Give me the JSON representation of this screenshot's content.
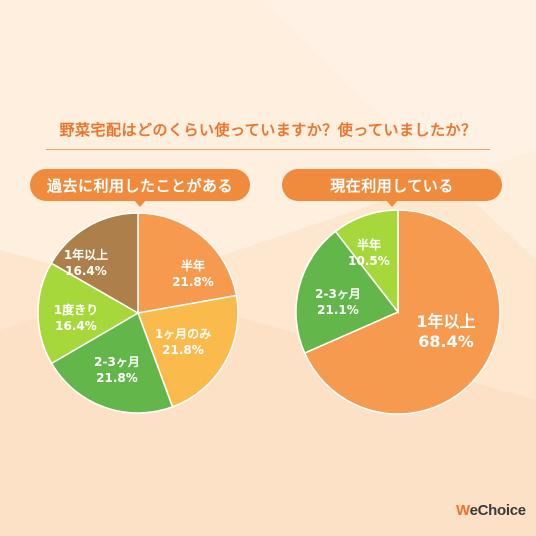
{
  "title": "野菜宅配はどのくらい使っていますか？使っていましたか？",
  "brand": "WeChoice",
  "colors": {
    "orange": "#f59a4f",
    "yellow_orange": "#fbbb4c",
    "green": "#62b64a",
    "lime": "#a6d83c",
    "brown": "#ad7f4a",
    "accent": "#f08b3e"
  },
  "chart_data": [
    {
      "type": "pie",
      "title": "過去に利用したことがある",
      "slices": [
        {
          "label": "半年",
          "value": 21.8,
          "value_text": "21.8%",
          "color": "#f59a4f"
        },
        {
          "label": "1ヶ月のみ",
          "value": 21.8,
          "value_text": "21.8%",
          "color": "#fbbb4c"
        },
        {
          "label": "2-3ヶ月",
          "value": 21.8,
          "value_text": "21.8%",
          "color": "#62b64a"
        },
        {
          "label": "1度きり",
          "value": 16.4,
          "value_text": "16.4%",
          "color": "#a6d83c"
        },
        {
          "label": "1年以上",
          "value": 16.4,
          "value_text": "16.4%",
          "color": "#ad7f4a"
        }
      ]
    },
    {
      "type": "pie",
      "title": "現在利用している",
      "slices": [
        {
          "label": "1年以上",
          "value": 68.4,
          "value_text": "68.4%",
          "color": "#f59a4f"
        },
        {
          "label": "2-3ヶ月",
          "value": 21.1,
          "value_text": "21.1%",
          "color": "#62b64a"
        },
        {
          "label": "半年",
          "value": 10.5,
          "value_text": "10.5%",
          "color": "#a6d83c"
        }
      ]
    }
  ]
}
